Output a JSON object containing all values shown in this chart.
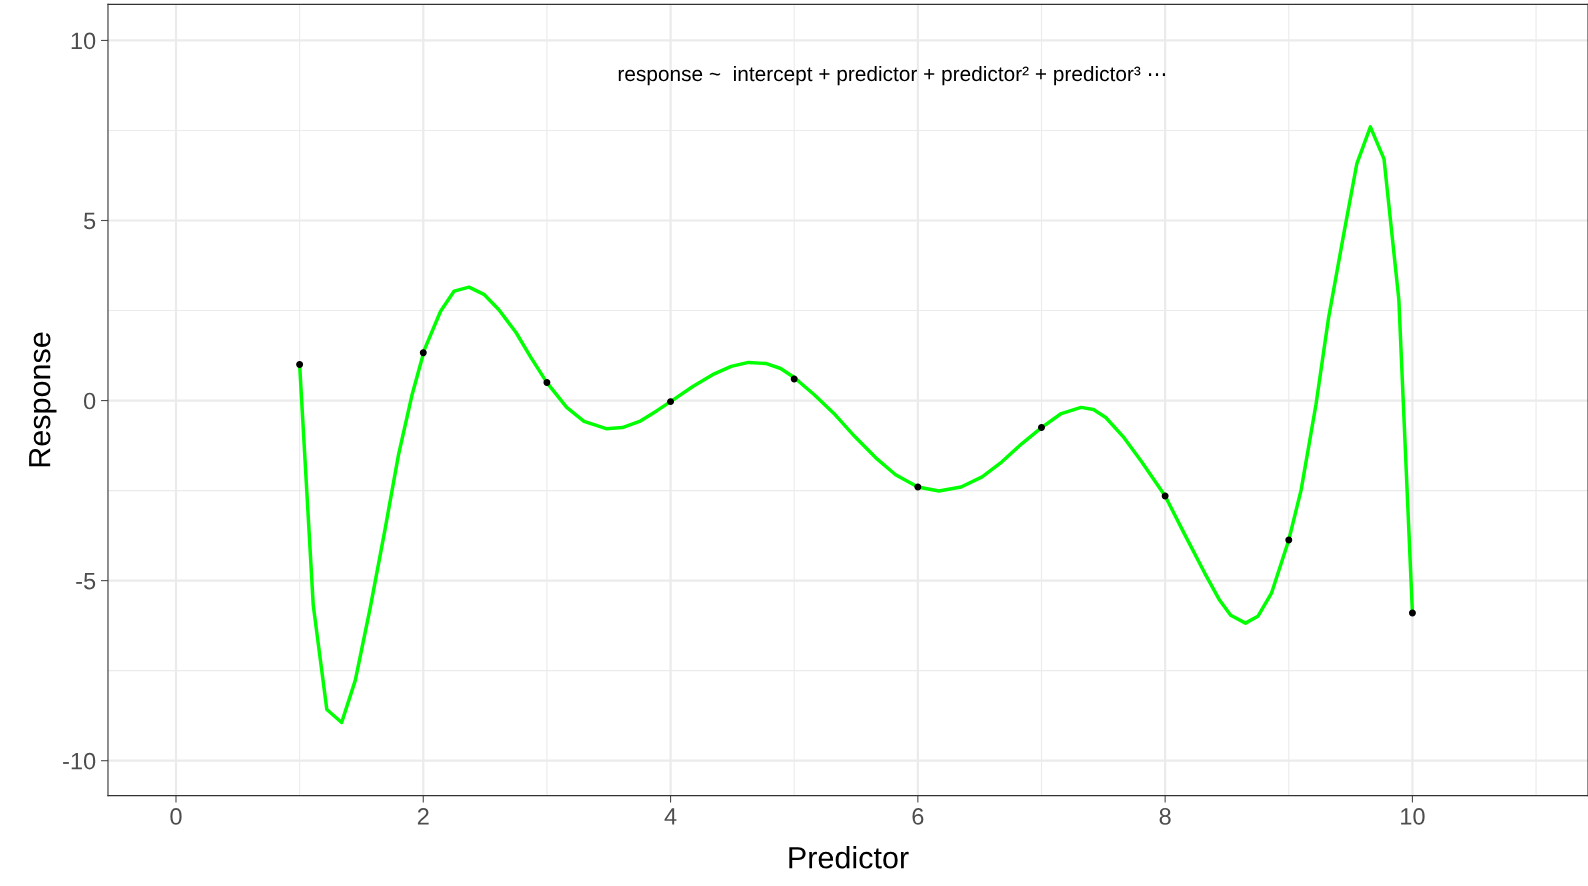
{
  "chart_data": {
    "type": "scatter",
    "xlabel": "Predictor",
    "ylabel": "Response",
    "annotations": [
      "response ~  intercept + predictor + predictor² + predictor³ ⋯"
    ],
    "xlim": [
      -0.55,
      11.42
    ],
    "ylim": [
      -10.97,
      11.0
    ],
    "xticks": [
      0,
      2,
      4,
      6,
      8,
      10
    ],
    "yticks": [
      -10,
      -5,
      0,
      5,
      10
    ],
    "grid": true,
    "series": [
      {
        "type": "line",
        "color": "#00ff00",
        "marker": "none",
        "x": [
          1.0,
          1.11,
          1.22,
          1.34,
          1.45,
          1.57,
          1.69,
          1.8,
          1.91,
          2.01,
          2.14,
          2.25,
          2.37,
          2.49,
          2.61,
          2.75,
          2.87,
          3.0,
          3.16,
          3.3,
          3.48,
          3.61,
          3.75,
          3.89,
          4.0,
          4.18,
          4.34,
          4.49,
          4.63,
          4.77,
          4.89,
          5.0,
          5.16,
          5.33,
          5.49,
          5.66,
          5.82,
          6.0,
          6.17,
          6.35,
          6.52,
          6.68,
          6.84,
          7.0,
          7.16,
          7.32,
          7.42,
          7.52,
          7.66,
          7.81,
          8.0,
          8.16,
          8.32,
          8.44,
          8.53,
          8.65,
          8.75,
          8.86,
          9.0,
          9.1,
          9.22,
          9.32,
          9.44,
          9.55,
          9.66,
          9.77,
          9.89,
          10.0
        ],
        "values": [
          1.0,
          -5.68,
          -8.58,
          -8.94,
          -7.77,
          -5.77,
          -3.59,
          -1.5,
          0.17,
          1.42,
          2.48,
          3.04,
          3.15,
          2.95,
          2.53,
          1.89,
          1.2,
          0.5,
          -0.19,
          -0.58,
          -0.78,
          -0.75,
          -0.58,
          -0.28,
          -0.03,
          0.39,
          0.72,
          0.95,
          1.06,
          1.03,
          0.89,
          0.64,
          0.17,
          -0.39,
          -1.0,
          -1.59,
          -2.06,
          -2.4,
          -2.51,
          -2.4,
          -2.12,
          -1.7,
          -1.2,
          -0.75,
          -0.36,
          -0.19,
          -0.25,
          -0.47,
          -1.0,
          -1.7,
          -2.65,
          -3.73,
          -4.79,
          -5.54,
          -5.96,
          -6.18,
          -5.99,
          -5.35,
          -3.87,
          -2.48,
          -0.11,
          2.26,
          4.54,
          6.57,
          7.6,
          6.71,
          2.81,
          -5.9
        ]
      },
      {
        "color": "#000000",
        "marker": "circle",
        "x": [
          1,
          2,
          3,
          4,
          5,
          6,
          7,
          8,
          9,
          10
        ],
        "values": [
          1.0,
          1.33,
          0.5,
          -0.03,
          0.6,
          -2.4,
          -0.75,
          -2.65,
          -3.87,
          -5.9
        ]
      }
    ]
  }
}
